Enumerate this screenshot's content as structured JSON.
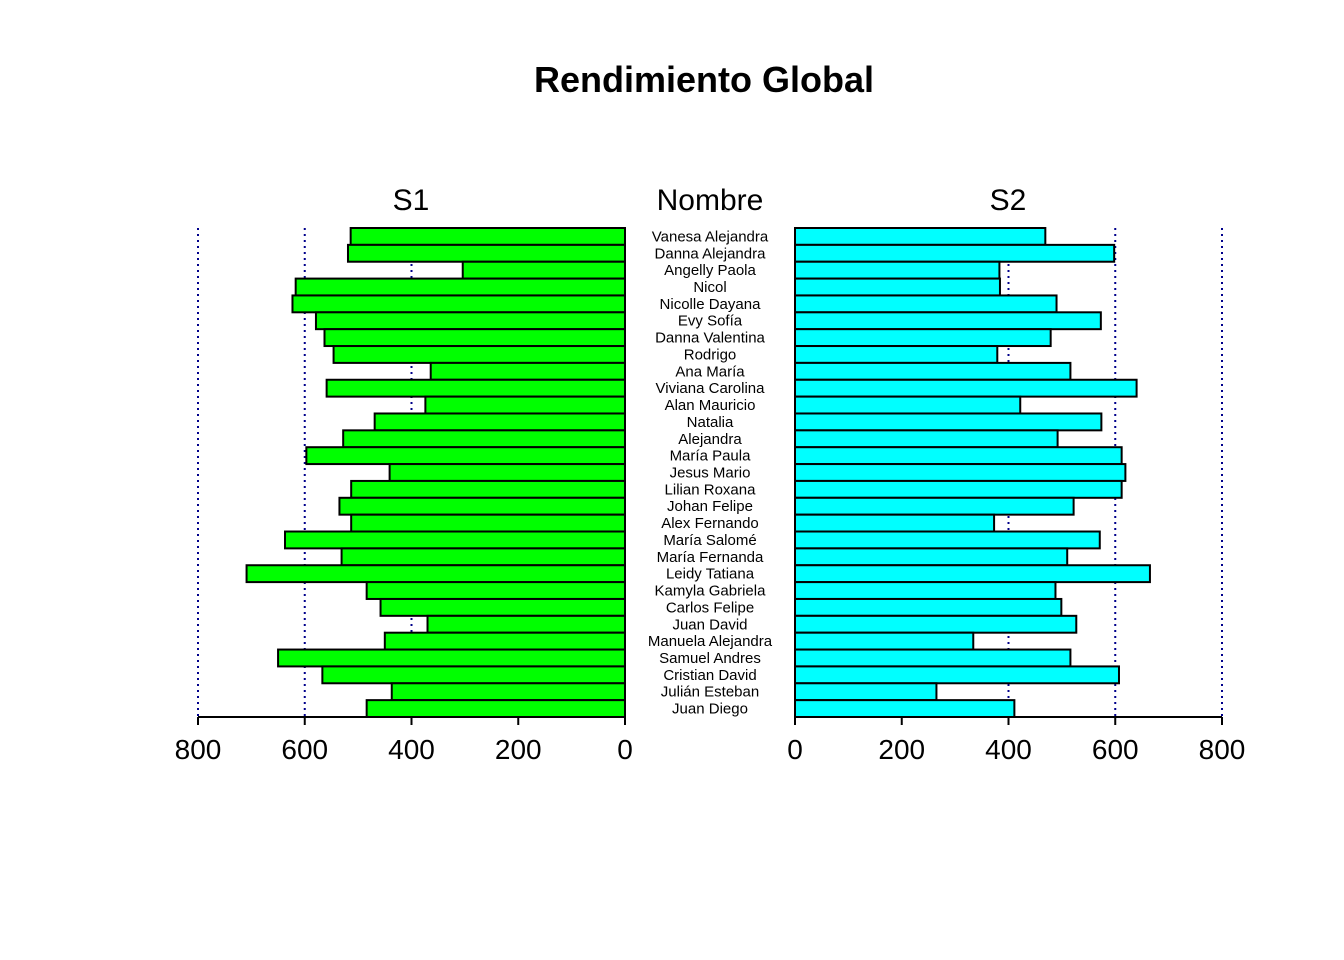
{
  "chart_data": {
    "type": "bar",
    "orientation": "horizontal-pyramid",
    "title": "Rendimiento Global",
    "center_label": "Nombre",
    "categories": [
      "Vanesa Alejandra",
      "Danna Alejandra",
      "Angelly Paola",
      "Nicol",
      "Nicolle Dayana",
      "Evy Sofía",
      "Danna Valentina",
      "Rodrigo",
      "Ana María",
      "Viviana Carolina",
      "Alan Mauricio",
      "Natalia",
      "Alejandra",
      "María Paula",
      "Jesus Mario",
      "Lilian Roxana",
      "Johan Felipe",
      "Alex Fernando",
      "María Salomé",
      "María Fernanda",
      "Leidy Tatiana",
      "Kamyla Gabriela",
      "Carlos Felipe",
      "Juan David",
      "Manuela Alejandra",
      "Samuel Andres",
      "Cristian David",
      "Julián Esteban",
      "Juan Diego"
    ],
    "series": [
      {
        "name": "S1",
        "color": "#00ff00",
        "values": [
          514,
          519,
          304,
          617,
          623,
          579,
          563,
          546,
          364,
          559,
          374,
          469,
          528,
          597,
          441,
          513,
          535,
          513,
          637,
          531,
          709,
          484,
          458,
          370,
          450,
          650,
          567,
          437,
          484
        ]
      },
      {
        "name": "S2",
        "color": "#00ffff",
        "values": [
          469,
          598,
          383,
          384,
          490,
          573,
          479,
          379,
          516,
          640,
          422,
          574,
          492,
          612,
          619,
          612,
          522,
          373,
          571,
          510,
          665,
          488,
          499,
          527,
          334,
          516,
          607,
          265,
          411
        ]
      }
    ],
    "xlim": [
      0,
      800
    ],
    "ticks": [
      "0",
      "200",
      "400",
      "600",
      "800"
    ],
    "gridlines": [
      400,
      600,
      800
    ],
    "grid_color": "#00008b"
  }
}
